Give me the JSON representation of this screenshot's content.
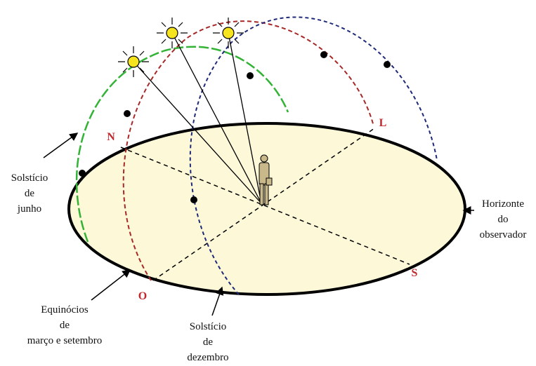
{
  "cardinal_points": {
    "north": "N",
    "east": "L",
    "west": "O",
    "south": "S"
  },
  "annotations": [
    {
      "lines": [
        "Solstício",
        "de",
        "junho"
      ]
    },
    {
      "lines": [
        "Horizonte",
        "do",
        "observador"
      ]
    },
    {
      "lines": [
        "Equinócios",
        "de",
        "março e setembro"
      ]
    },
    {
      "lines": [
        "Solstício",
        "de",
        "dezembro"
      ]
    }
  ]
}
